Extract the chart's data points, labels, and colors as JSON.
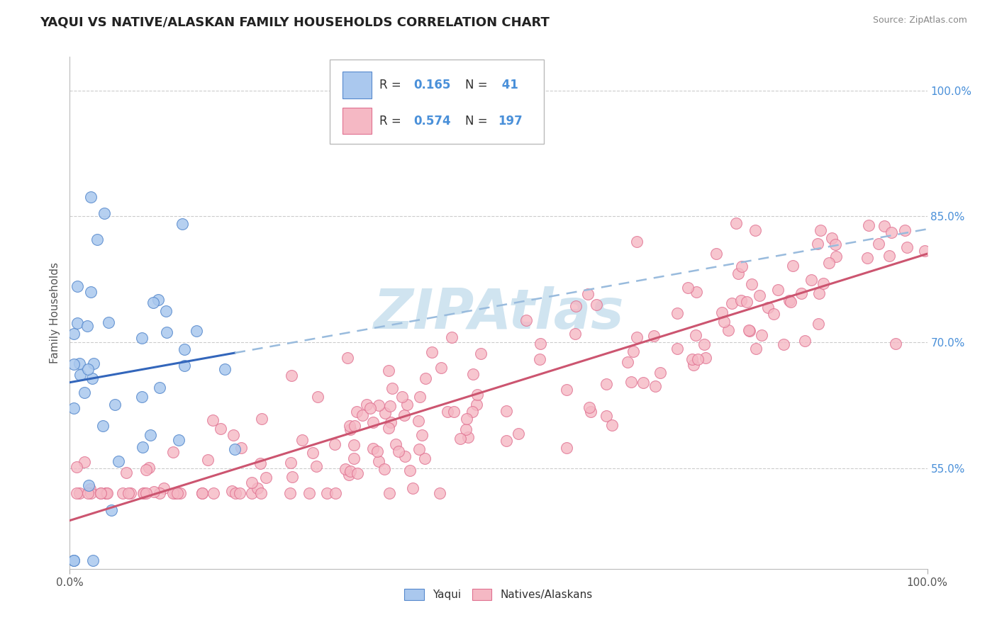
{
  "title": "YAQUI VS NATIVE/ALASKAN FAMILY HOUSEHOLDS CORRELATION CHART",
  "source": "Source: ZipAtlas.com",
  "ylabel": "Family Households",
  "ytick_vals": [
    0.55,
    0.7,
    0.85,
    1.0
  ],
  "ytick_labels": [
    "55.0%",
    "70.0%",
    "85.0%",
    "100.0%"
  ],
  "xlim": [
    0.0,
    1.0
  ],
  "ylim": [
    0.43,
    1.04
  ],
  "yaqui_R": 0.165,
  "yaqui_N": 41,
  "native_R": 0.574,
  "native_N": 197,
  "blue_fill": "#aac8ee",
  "blue_edge": "#5588cc",
  "blue_line": "#3366bb",
  "blue_dash": "#99bbdd",
  "pink_fill": "#f5b8c4",
  "pink_edge": "#e07090",
  "pink_line": "#cc5570",
  "watermark": "ZIPAtlas",
  "watermark_color": "#d0e4f0",
  "background_color": "#ffffff",
  "title_fontsize": 13,
  "legend_fontsize": 12,
  "axis_label_fontsize": 11,
  "tick_fontsize": 11,
  "value_color": "#4a90d9",
  "text_color": "#333333",
  "tick_color": "#555555",
  "right_tick_color": "#4a90d9",
  "grid_color": "#cccccc"
}
